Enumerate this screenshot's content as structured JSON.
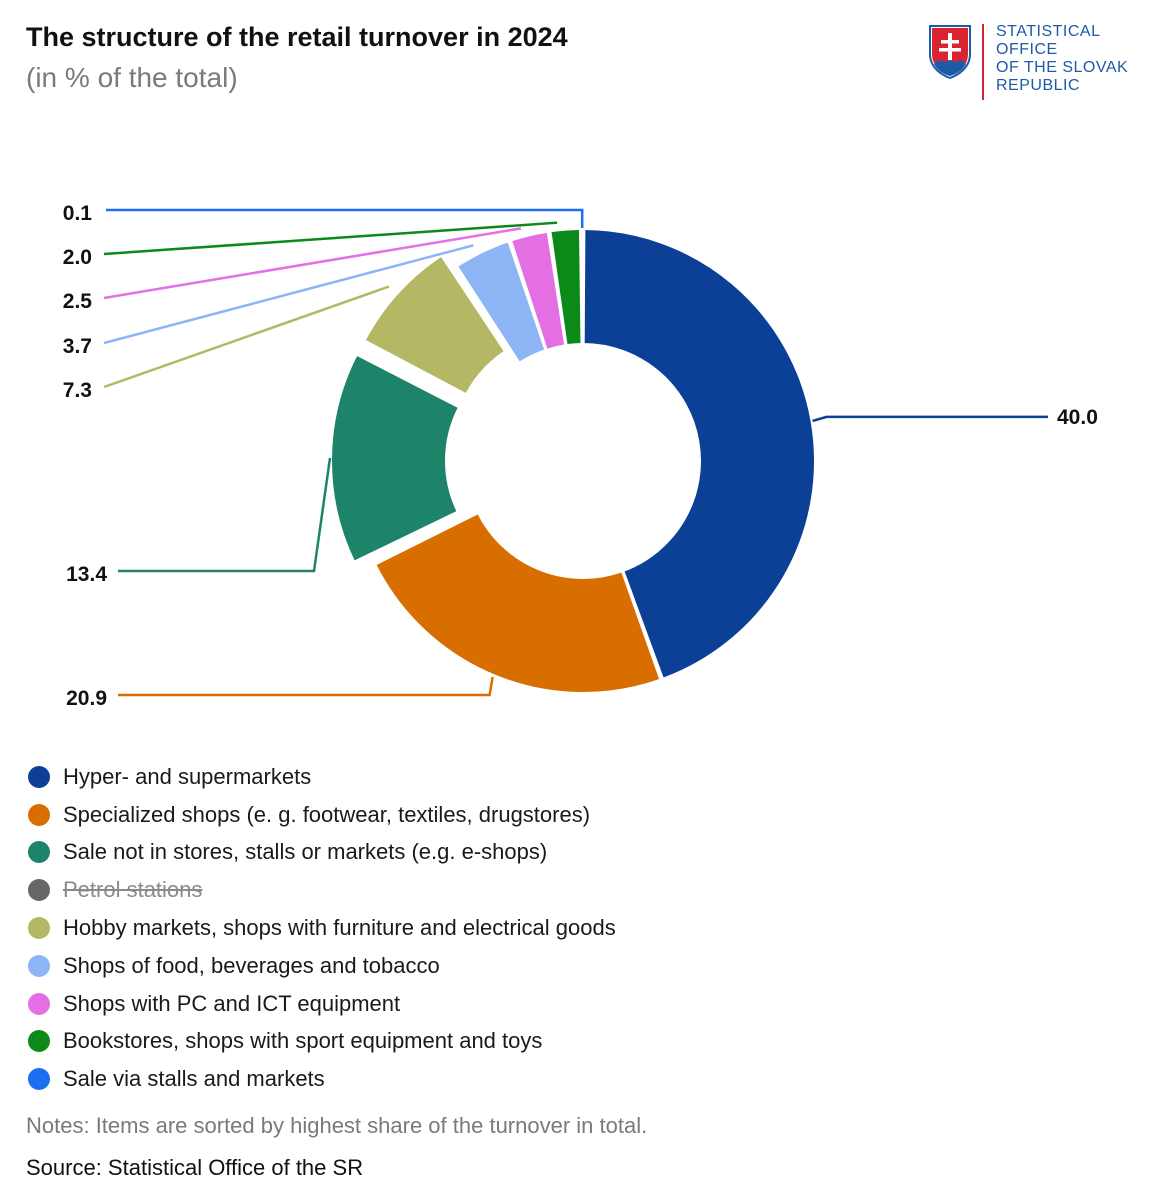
{
  "header": {
    "title": "The structure of the retail turnover in 2024",
    "subtitle": "(in % of the total)"
  },
  "logo": {
    "text": "STATISTICAL\nOFFICE\nOF THE SLOVAK\nREPUBLIC",
    "icon": "slovak-coat-of-arms"
  },
  "chart_data": {
    "type": "pie",
    "subtype": "donut",
    "units": "% of the total",
    "series": [
      {
        "name": "Hyper- and supermarkets",
        "value": 40.0,
        "label": "40.0",
        "color": "#0c3f96",
        "visible": true
      },
      {
        "name": "Specialized shops (e. g. footwear, textiles, drugstores)",
        "value": 20.9,
        "label": "20.9",
        "color": "#d96e00",
        "visible": true
      },
      {
        "name": "Sale not in stores, stalls or markets (e.g. e-shops)",
        "value": 13.4,
        "label": "13.4",
        "color": "#1e8469",
        "visible": true
      },
      {
        "name": "Petrol stations",
        "value": null,
        "label": "",
        "color": "#666666",
        "visible": false
      },
      {
        "name": "Hobby markets, shops with furniture and electrical goods",
        "value": 7.3,
        "label": "7.3",
        "color": "#b4b865",
        "visible": true
      },
      {
        "name": "Shops of food, beverages and tobacco",
        "value": 3.7,
        "label": "3.7",
        "color": "#8db5f6",
        "visible": true
      },
      {
        "name": "Shops with PC and ICT equipment",
        "value": 2.5,
        "label": "2.5",
        "color": "#e36fe3",
        "visible": true
      },
      {
        "name": "Bookstores, shops with sport equipment and toys",
        "value": 2.0,
        "label": "2.0",
        "color": "#0b8a1a",
        "visible": true
      },
      {
        "name": "Sale via stalls and markets",
        "value": 0.1,
        "label": "0.1",
        "color": "#1b6ef0",
        "visible": true
      }
    ],
    "legend_position": "bottom-left"
  },
  "footer": {
    "notes": "Notes: Items are sorted by highest share of the turnover in total.",
    "source": "Source: Statistical Office of the SR"
  }
}
